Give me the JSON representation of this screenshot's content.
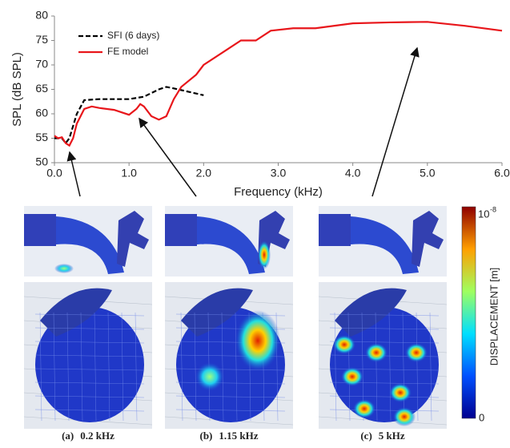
{
  "chart_data": {
    "type": "line",
    "xlabel": "Frequency (kHz)",
    "ylabel": "SPL (dB SPL)",
    "xlim": [
      0,
      6
    ],
    "ylim": [
      50,
      80
    ],
    "xticks": [
      {
        "value": 0,
        "label": "0.0"
      },
      {
        "value": 1,
        "label": "1.0"
      },
      {
        "value": 2,
        "label": "2.0"
      },
      {
        "value": 3,
        "label": "3.0"
      },
      {
        "value": 4,
        "label": "4.0"
      },
      {
        "value": 5,
        "label": "5.0"
      },
      {
        "value": 6,
        "label": "6.0"
      }
    ],
    "yticks": [
      50,
      55,
      60,
      65,
      70,
      75,
      80
    ],
    "legend": "upper left",
    "series": [
      {
        "name": "SFI (6 days)",
        "color": "#000000",
        "dash": true,
        "x": [
          0.0,
          0.1,
          0.15,
          0.2,
          0.3,
          0.4,
          0.6,
          0.8,
          1.0,
          1.2,
          1.4,
          1.5,
          1.6,
          1.8,
          2.0
        ],
        "values": [
          55,
          55,
          54,
          55,
          60,
          62.8,
          63,
          63,
          63,
          63.5,
          65,
          65.5,
          65.2,
          64.5,
          63.8
        ]
      },
      {
        "name": "FE model",
        "color": "#e8161b",
        "dash": false,
        "x": [
          0.0,
          0.05,
          0.1,
          0.15,
          0.2,
          0.25,
          0.3,
          0.4,
          0.5,
          0.6,
          0.8,
          1.0,
          1.1,
          1.15,
          1.2,
          1.3,
          1.4,
          1.5,
          1.6,
          1.7,
          1.9,
          2.0,
          2.3,
          2.5,
          2.7,
          2.9,
          3.2,
          3.5,
          4.0,
          4.5,
          5.0,
          5.5,
          6.0
        ],
        "values": [
          55.5,
          55,
          55.2,
          54,
          53.5,
          55,
          58,
          61,
          61.5,
          61.2,
          60.8,
          59.8,
          61,
          62,
          61.5,
          59.5,
          58.8,
          59.5,
          63,
          65.5,
          68,
          70,
          73,
          75,
          75,
          77,
          77.5,
          77.5,
          78.5,
          78.7,
          78.8,
          78,
          77
        ]
      }
    ]
  },
  "panels": [
    {
      "label": "(a)",
      "frequency": "0.2 kHz"
    },
    {
      "label": "(b)",
      "frequency": "1.15 kHz"
    },
    {
      "label": "(c)",
      "frequency": "5 kHz"
    }
  ],
  "colorbar": {
    "title": "DISPLACEMENT [m]",
    "top": "10",
    "top_exponent": "-8",
    "bottom": "0"
  }
}
